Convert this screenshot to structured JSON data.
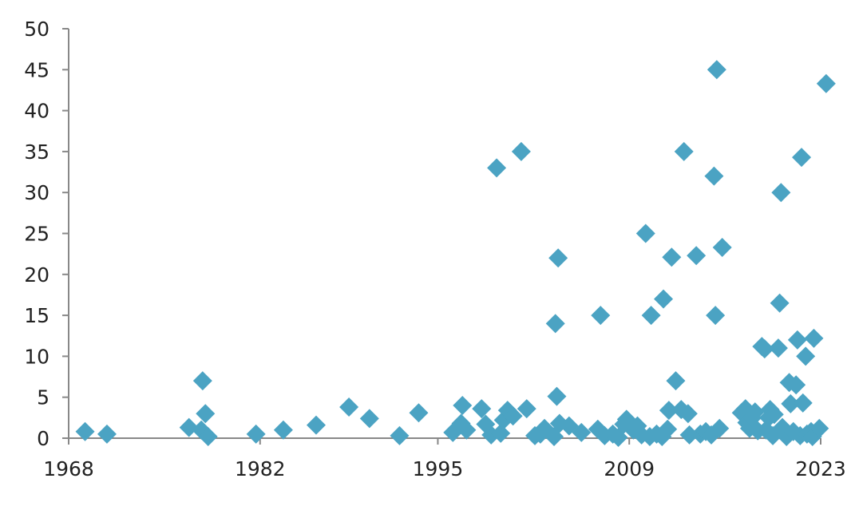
{
  "chart_data": {
    "type": "scatter",
    "title": "",
    "xlabel": "",
    "ylabel": "",
    "xlim": [
      1968,
      2023
    ],
    "ylim": [
      0,
      50
    ],
    "x_ticks": [
      1968,
      1982,
      1995,
      2009,
      2023
    ],
    "y_ticks": [
      0,
      5,
      10,
      15,
      20,
      25,
      30,
      35,
      40,
      45,
      50
    ],
    "grid": false,
    "legend": "none",
    "marker_color": "#4BA3C3",
    "axis_color": "#888888",
    "series": [
      {
        "points": [
          [
            1969.2,
            0.8
          ],
          [
            1970.8,
            0.5
          ],
          [
            1976.8,
            1.3
          ],
          [
            1977.7,
            1.0
          ],
          [
            1977.8,
            7.0
          ],
          [
            1978.0,
            3.0
          ],
          [
            1978.2,
            0.2
          ],
          [
            1981.7,
            0.5
          ],
          [
            1983.7,
            1.0
          ],
          [
            1986.1,
            1.6
          ],
          [
            1988.5,
            3.8
          ],
          [
            1990.0,
            2.4
          ],
          [
            1992.2,
            0.3
          ],
          [
            1993.6,
            3.1
          ],
          [
            1996.1,
            0.7
          ],
          [
            1996.7,
            1.8
          ],
          [
            1996.8,
            4.0
          ],
          [
            1997.1,
            1.0
          ],
          [
            1998.2,
            3.6
          ],
          [
            1998.5,
            1.7
          ],
          [
            1998.9,
            0.4
          ],
          [
            1999.3,
            33.0
          ],
          [
            1999.6,
            0.6
          ],
          [
            1999.8,
            2.2
          ],
          [
            2000.1,
            3.4
          ],
          [
            2000.5,
            2.7
          ],
          [
            2001.1,
            35.0
          ],
          [
            2001.5,
            3.6
          ],
          [
            2002.1,
            0.3
          ],
          [
            2002.5,
            0.5
          ],
          [
            2002.8,
            1.2
          ],
          [
            2003.5,
            0.2
          ],
          [
            2003.6,
            14.0
          ],
          [
            2003.7,
            5.1
          ],
          [
            2003.8,
            22.0
          ],
          [
            2003.9,
            1.8
          ],
          [
            2004.6,
            1.5
          ],
          [
            2005.5,
            0.7
          ],
          [
            2006.7,
            1.1
          ],
          [
            2006.9,
            15.0
          ],
          [
            2007.2,
            0.3
          ],
          [
            2007.8,
            0.5
          ],
          [
            2008.2,
            0.1
          ],
          [
            2008.6,
            1.7
          ],
          [
            2008.8,
            2.3
          ],
          [
            2009.3,
            1.0
          ],
          [
            2009.6,
            1.5
          ],
          [
            2009.9,
            0.4
          ],
          [
            2010.2,
            25.0
          ],
          [
            2010.5,
            0.2
          ],
          [
            2010.6,
            15.0
          ],
          [
            2011.0,
            0.5
          ],
          [
            2011.4,
            0.2
          ],
          [
            2011.5,
            17.0
          ],
          [
            2011.8,
            1.1
          ],
          [
            2011.9,
            3.4
          ],
          [
            2012.1,
            22.1
          ],
          [
            2012.4,
            7.0
          ],
          [
            2012.8,
            3.5
          ],
          [
            2013.0,
            35.0
          ],
          [
            2013.3,
            3.0
          ],
          [
            2013.4,
            0.4
          ],
          [
            2013.9,
            22.3
          ],
          [
            2014.2,
            0.5
          ],
          [
            2014.6,
            0.8
          ],
          [
            2015.0,
            0.4
          ],
          [
            2015.2,
            32.0
          ],
          [
            2015.3,
            15.0
          ],
          [
            2015.4,
            45.0
          ],
          [
            2015.6,
            1.2
          ],
          [
            2015.8,
            23.3
          ],
          [
            2017.2,
            3.1
          ],
          [
            2017.5,
            3.6
          ],
          [
            2017.6,
            1.9
          ],
          [
            2017.8,
            1.2
          ],
          [
            2018.0,
            2.5
          ],
          [
            2018.2,
            3.2
          ],
          [
            2018.4,
            0.9
          ],
          [
            2018.7,
            11.2
          ],
          [
            2018.9,
            10.9
          ],
          [
            2019.0,
            1.0
          ],
          [
            2019.2,
            2.5
          ],
          [
            2019.3,
            3.5
          ],
          [
            2019.5,
            0.3
          ],
          [
            2019.6,
            2.9
          ],
          [
            2019.9,
            11.0
          ],
          [
            2020.0,
            16.5
          ],
          [
            2020.1,
            30.0
          ],
          [
            2020.2,
            1.3
          ],
          [
            2020.4,
            0.5
          ],
          [
            2020.5,
            0.2
          ],
          [
            2020.7,
            6.8
          ],
          [
            2020.8,
            4.2
          ],
          [
            2021.0,
            0.8
          ],
          [
            2021.2,
            6.5
          ],
          [
            2021.3,
            12.0
          ],
          [
            2021.5,
            0.3
          ],
          [
            2021.6,
            34.3
          ],
          [
            2021.7,
            4.3
          ],
          [
            2021.9,
            10.0
          ],
          [
            2022.0,
            0.5
          ],
          [
            2022.3,
            0.8
          ],
          [
            2022.4,
            0.2
          ],
          [
            2022.5,
            12.2
          ],
          [
            2022.9,
            1.2
          ],
          [
            2023.4,
            43.3
          ]
        ]
      }
    ]
  }
}
